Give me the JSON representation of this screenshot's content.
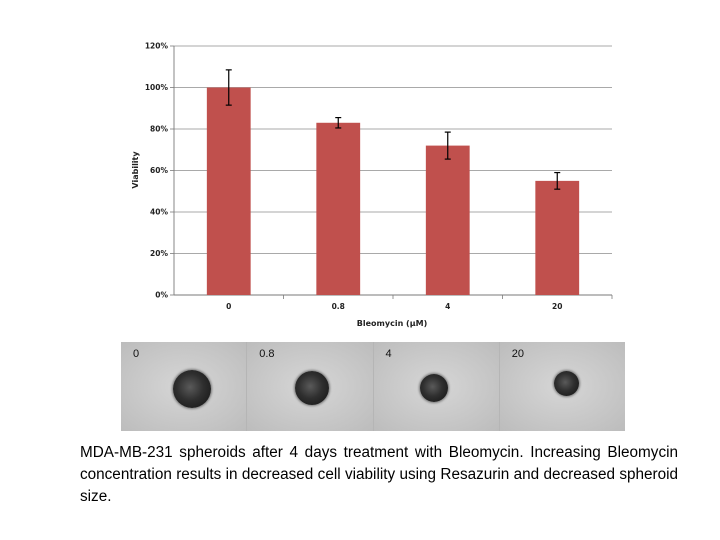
{
  "chart_data": {
    "type": "bar",
    "categories": [
      "0",
      "0.8",
      "4",
      "20"
    ],
    "values": [
      100,
      83,
      72,
      55
    ],
    "errors": [
      8.5,
      2.5,
      6.5,
      4
    ],
    "xlabel": "Bleomycin (µM)",
    "ylabel": "Viability",
    "ylim": [
      0,
      120
    ],
    "yticks": [
      "0%",
      "20%",
      "40%",
      "60%",
      "80%",
      "100%",
      "120%"
    ],
    "grid": true,
    "bar_color": "#c0504d"
  },
  "images": {
    "panels": [
      {
        "label": "0"
      },
      {
        "label": "0.8"
      },
      {
        "label": "4"
      },
      {
        "label": "20"
      }
    ]
  },
  "caption": "MDA-MB-231 spheroids after 4 days treatment with Bleomycin.  Increasing Bleomycin concentration results in decreased cell viability using Resazurin and decreased spheroid size."
}
